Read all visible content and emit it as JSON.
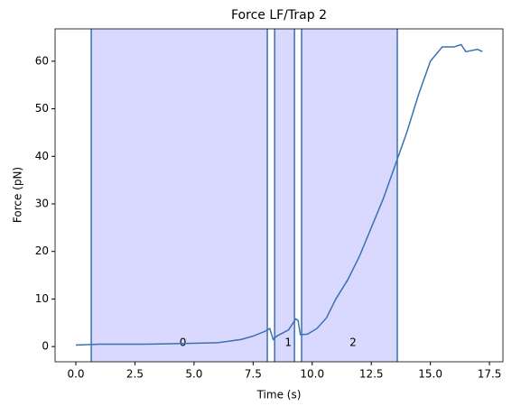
{
  "chart_data": {
    "type": "line",
    "title": "Force LF/Trap 2",
    "x_label": "Time (s)",
    "y_label": "Force (pN)",
    "x": [
      0,
      0.5,
      1,
      2,
      3,
      4,
      5,
      6,
      7,
      7.5,
      8,
      8.2,
      8.35,
      8.5,
      9,
      9.3,
      9.4,
      9.5,
      9.8,
      10.2,
      10.6,
      11,
      11.5,
      12,
      12.5,
      13,
      13.5,
      14,
      14.5,
      15,
      15.5,
      16,
      16.3,
      16.5,
      17,
      17.2
    ],
    "series": [
      {
        "color": "#3a70b0",
        "values": [
          0.3,
          0.4,
          0.5,
          0.5,
          0.5,
          0.6,
          0.7,
          0.8,
          1.5,
          2.2,
          3.2,
          3.8,
          1.5,
          2.2,
          3.5,
          5.8,
          5.5,
          2.5,
          2.6,
          3.8,
          6,
          10,
          14,
          19,
          25,
          31,
          38,
          45,
          53,
          60,
          63,
          63,
          63.5,
          62,
          62.5,
          62
        ]
      }
    ],
    "spans": [
      {
        "start": 0.65,
        "end": 8.1,
        "label": "0"
      },
      {
        "start": 8.41,
        "end": 9.25,
        "label": "1"
      },
      {
        "start": 9.55,
        "end": 13.6,
        "label": "2"
      }
    ],
    "span_color": "#d9d9ff",
    "xlim": [
      -0.88,
      18.07
    ],
    "ylim": [
      -3.2,
      66.8
    ],
    "xticks": [
      {
        "value": 0,
        "label": "0.0"
      },
      {
        "value": 2.5,
        "label": "2.5"
      },
      {
        "value": 5,
        "label": "5.0"
      },
      {
        "value": 7.5,
        "label": "7.5"
      },
      {
        "value": 10,
        "label": "10.0"
      },
      {
        "value": 12.5,
        "label": "12.5"
      },
      {
        "value": 15,
        "label": "15.0"
      },
      {
        "value": 17.5,
        "label": "17.5"
      }
    ],
    "yticks": [
      0,
      10,
      20,
      30,
      40,
      50,
      60
    ]
  }
}
